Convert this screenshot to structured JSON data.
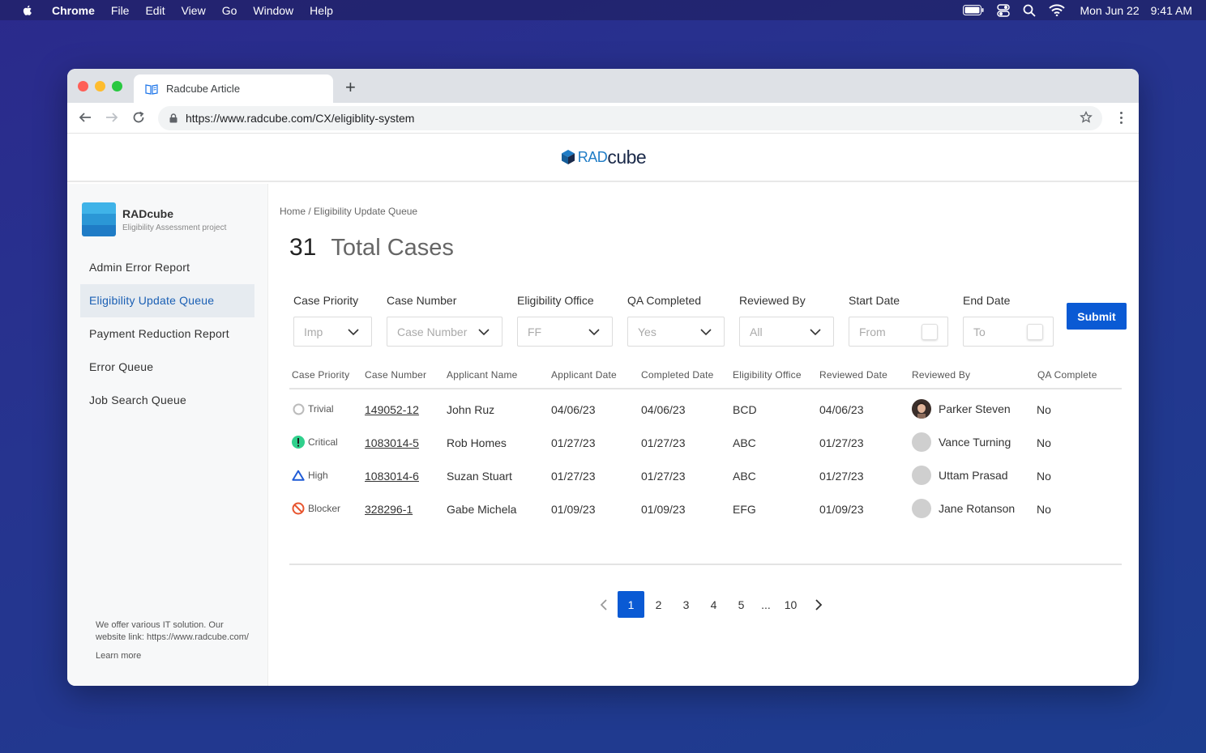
{
  "menubar": {
    "app": "Chrome",
    "items": [
      "File",
      "Edit",
      "View",
      "Go",
      "Window",
      "Help"
    ],
    "date": "Mon Jun 22",
    "time": "9:41 AM"
  },
  "browser": {
    "tab_title": "Radcube Article",
    "url": "https://www.radcube.com/CX/eligiblity-system"
  },
  "site": {
    "logo_rad": "RAD",
    "logo_cube": "cube"
  },
  "sidebar": {
    "brand_name": "RADcube",
    "brand_sub": "Eligibility Assessment project",
    "items": [
      {
        "label": "Admin Error Report"
      },
      {
        "label": "Eligibility Update Queue"
      },
      {
        "label": "Payment Reduction Report"
      },
      {
        "label": "Error Queue"
      },
      {
        "label": "Job Search Queue"
      }
    ],
    "footer_text": "We offer various IT solution. Our website link: https://www.radcube.com/",
    "learn_more": "Learn more"
  },
  "main": {
    "breadcrumb": "Home / Eligibility Update Queue",
    "count": "31",
    "count_label": "Total Cases",
    "filters": {
      "priority": {
        "label": "Case Priority",
        "value": "Imp"
      },
      "case_number": {
        "label": "Case Number",
        "value": "Case Number"
      },
      "office": {
        "label": "Eligibility Office",
        "value": "FF"
      },
      "qa": {
        "label": "QA Completed",
        "value": "Yes"
      },
      "reviewed_by": {
        "label": "Reviewed By",
        "value": "All"
      },
      "start_date": {
        "label": "Start Date",
        "value": "From"
      },
      "end_date": {
        "label": "End Date",
        "value": "To"
      }
    },
    "submit": "Submit",
    "columns": [
      "Case Priority",
      "Case Number",
      "Applicant Name",
      "Applicant Date",
      "Completed Date",
      "Eligibility Office",
      "Reviewed Date",
      "Reviewed By",
      "QA Complete"
    ],
    "rows": [
      {
        "priority": "Trivial",
        "case": "149052-12",
        "name": "John Ruz",
        "app_date": "04/06/23",
        "comp_date": "04/06/23",
        "office": "BCD",
        "rev_date": "04/06/23",
        "reviewer": "Parker Steven",
        "qa": "No"
      },
      {
        "priority": "Critical",
        "case": "1083014-5",
        "name": "Rob Homes",
        "app_date": "01/27/23",
        "comp_date": "01/27/23",
        "office": "ABC",
        "rev_date": "01/27/23",
        "reviewer": "Vance Turning",
        "qa": "No"
      },
      {
        "priority": "High",
        "case": "1083014-6",
        "name": "Suzan Stuart",
        "app_date": "01/27/23",
        "comp_date": "01/27/23",
        "office": "ABC",
        "rev_date": "01/27/23",
        "reviewer": "Uttam Prasad",
        "qa": "No"
      },
      {
        "priority": "Blocker",
        "case": "328296-1",
        "name": "Gabe Michela",
        "app_date": "01/09/23",
        "comp_date": "01/09/23",
        "office": "EFG",
        "rev_date": "01/09/23",
        "reviewer": "Jane Rotanson",
        "qa": "No"
      }
    ],
    "pagination": [
      "1",
      "2",
      "3",
      "4",
      "5",
      "...",
      "10"
    ],
    "active_page": "1"
  },
  "colors": {
    "accent": "#0a5ad4",
    "active_menu_text": "#1a5fb4",
    "critical": "#2fd08c",
    "high": "#1f5bd6",
    "blocker": "#e8552f"
  }
}
